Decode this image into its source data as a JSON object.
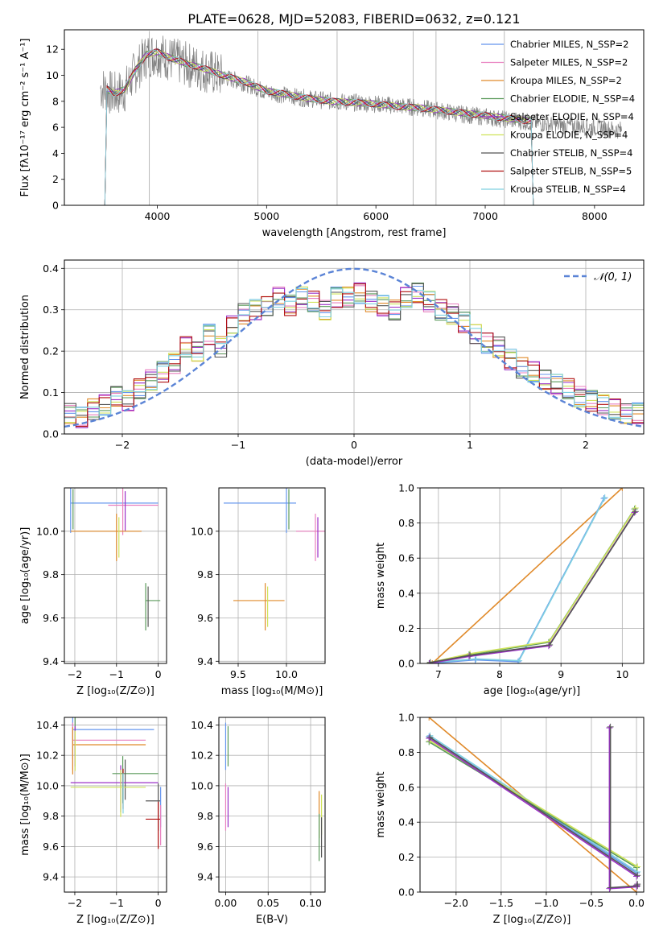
{
  "figure_title": "PLATE=0628, MJD=52083, FIBERID=0632, z=0.121",
  "colors": {
    "chabrier_miles": "#6495ed",
    "salpeter_miles": "#e87fbf",
    "kroupa_miles": "#e08a2a",
    "chabrier_elodie": "#5a9a5a",
    "salpeter_elodie": "#9b30c8",
    "kroupa_elodie": "#cfe35a",
    "chabrier_stelib": "#555555",
    "salpeter_stelib": "#b01010",
    "kroupa_stelib": "#7fd0e0",
    "data": "#7f7f7f",
    "gaussian": "#5b84d6",
    "grid": "#b0b0b0"
  },
  "chart_data": [
    {
      "type": "line",
      "xlabel": "wavelength [Angstrom, rest frame]",
      "ylabel": "Flux [fλ10⁻¹⁷ erg cm⁻² s⁻¹ A⁻¹]",
      "xlim": [
        3150,
        8450
      ],
      "ylim": [
        0,
        13.5
      ],
      "xticks": [
        "4000",
        "5000",
        "6000",
        "7000",
        "8000"
      ],
      "yticks": [
        "0",
        "2",
        "4",
        "6",
        "8",
        "10",
        "12"
      ],
      "grid": false,
      "legend_position": "top-right",
      "legend": [
        "Chabrier MILES, N_SSP=2",
        "Salpeter MILES, N_SSP=2",
        "Kroupa MILES, N_SSP=2",
        "Chabrier ELODIE, N_SSP=4",
        "Salpeter ELODIE, N_SSP=4",
        "Kroupa ELODIE, N_SSP=4",
        "Chabrier STELIB, N_SSP=4",
        "Salpeter STELIB, N_SSP=5",
        "Kroupa STELIB, N_SSP=4"
      ],
      "model_continuum": {
        "x": [
          3500,
          3600,
          3700,
          3800,
          3900,
          4000,
          4100,
          4200,
          4300,
          4400,
          4500,
          4600,
          4800,
          5000,
          5200,
          5400,
          5600,
          5800,
          6000,
          6200,
          6400,
          6600,
          6800,
          7000,
          7200,
          7400
        ],
        "y": [
          9.2,
          8.6,
          8.9,
          10.4,
          11.6,
          11.8,
          11.4,
          11.1,
          10.8,
          10.6,
          10.3,
          10.0,
          9.5,
          8.8,
          8.5,
          8.2,
          8.0,
          7.9,
          7.8,
          7.6,
          7.5,
          7.3,
          7.1,
          6.9,
          6.7,
          6.5
        ]
      },
      "data_envelope": {
        "x": [
          3500,
          3600,
          3700,
          3800,
          3900,
          4000,
          4100,
          4200,
          4400,
          4600,
          4800,
          5000,
          5300,
          5600,
          6000,
          6400,
          6800,
          7200,
          7600,
          8000,
          8200
        ],
        "y": [
          9.0,
          8.5,
          8.8,
          10.3,
          11.5,
          11.7,
          11.3,
          11.0,
          10.5,
          9.9,
          9.4,
          8.7,
          8.3,
          8.0,
          7.8,
          7.5,
          7.0,
          6.6,
          6.2,
          6.0,
          5.8
        ]
      }
    },
    {
      "type": "line",
      "xlabel": "(data-model)/error",
      "ylabel": "Normed distribution",
      "xlim": [
        -2.5,
        2.5
      ],
      "ylim": [
        0,
        0.42
      ],
      "xticks": [
        "−2",
        "−1",
        "0",
        "1",
        "2"
      ],
      "yticks": [
        "0.0",
        "0.1",
        "0.2",
        "0.3",
        "0.4"
      ],
      "grid": true,
      "legend_position": "top-right",
      "legend": [
        "𝒩(0, 1)"
      ],
      "histogram_bin_centers": [
        -2.45,
        -2.35,
        -2.25,
        -2.15,
        -2.05,
        -1.95,
        -1.85,
        -1.75,
        -1.65,
        -1.55,
        -1.45,
        -1.35,
        -1.25,
        -1.15,
        -1.05,
        -0.95,
        -0.85,
        -0.75,
        -0.65,
        -0.55,
        -0.45,
        -0.35,
        -0.25,
        -0.15,
        -0.05,
        0.05,
        0.15,
        0.25,
        0.35,
        0.45,
        0.55,
        0.65,
        0.75,
        0.85,
        0.95,
        1.05,
        1.15,
        1.25,
        1.35,
        1.45,
        1.55,
        1.65,
        1.75,
        1.85,
        1.95,
        2.05,
        2.15,
        2.25,
        2.35,
        2.45
      ],
      "histogram_values": [
        0.05,
        0.04,
        0.06,
        0.07,
        0.09,
        0.08,
        0.11,
        0.13,
        0.15,
        0.17,
        0.21,
        0.2,
        0.24,
        0.21,
        0.26,
        0.29,
        0.3,
        0.31,
        0.33,
        0.31,
        0.33,
        0.32,
        0.3,
        0.33,
        0.33,
        0.34,
        0.32,
        0.31,
        0.3,
        0.33,
        0.34,
        0.32,
        0.3,
        0.29,
        0.27,
        0.24,
        0.22,
        0.21,
        0.18,
        0.16,
        0.15,
        0.13,
        0.12,
        0.11,
        0.09,
        0.08,
        0.07,
        0.06,
        0.05,
        0.05
      ]
    },
    {
      "type": "scatter",
      "xlabel": "Z [log₁₀(Z/Z⊙)]",
      "ylabel": "age  [log₁₀(age/yr)]",
      "xlim": [
        -2.25,
        0.2
      ],
      "ylim": [
        9.39,
        10.2
      ],
      "xticks": [
        "−2",
        "−1",
        "0"
      ],
      "yticks": [
        "9.4",
        "9.6",
        "9.8",
        "10.0"
      ],
      "grid": true,
      "points": [
        {
          "x": -2.1,
          "y": 10.13,
          "xmin": -2.1,
          "xmax": 0.0
        },
        {
          "x": -0.85,
          "y": 10.12,
          "xmin": -1.2,
          "xmax": 0.0
        },
        {
          "x": -1.0,
          "y": 10.0,
          "xmin": -2.1,
          "xmax": -0.4
        },
        {
          "x": -0.3,
          "y": 9.68,
          "xmin": -0.3,
          "xmax": 0.05
        }
      ]
    },
    {
      "type": "scatter",
      "xlabel": "mass [log₁₀(M/M⊙)]",
      "ylabel": "",
      "xlim": [
        9.3,
        10.4
      ],
      "ylim": [
        9.39,
        10.2
      ],
      "xticks": [
        "9.5",
        "10.0"
      ],
      "yticks": [
        "9.4",
        "9.6",
        "9.8",
        "10.0"
      ],
      "grid": true,
      "points": [
        {
          "x": 10.0,
          "y": 10.13,
          "xmin": 9.35,
          "xmax": 10.1
        },
        {
          "x": 10.3,
          "y": 10.0,
          "xmin": 10.1,
          "xmax": 10.4
        },
        {
          "x": 9.78,
          "y": 9.68,
          "xmin": 9.45,
          "xmax": 9.98
        }
      ]
    },
    {
      "type": "line",
      "xlabel": "age  [log₁₀(age/yr)]",
      "ylabel": "mass weight",
      "xlim": [
        6.7,
        10.35
      ],
      "ylim": [
        0,
        1.0
      ],
      "xticks": [
        "7",
        "8",
        "9",
        "10"
      ],
      "yticks": [
        "0.0",
        "0.2",
        "0.4",
        "0.6",
        "0.8",
        "1.0"
      ],
      "grid": true,
      "series": [
        {
          "x": [
            6.9,
            10.0
          ],
          "y": [
            0.0,
            1.0
          ]
        },
        {
          "x": [
            6.85,
            7.6,
            8.3,
            9.7
          ],
          "y": [
            0.0,
            0.02,
            0.01,
            0.94
          ]
        },
        {
          "x": [
            6.85,
            7.5,
            8.8,
            10.2
          ],
          "y": [
            0.0,
            0.05,
            0.12,
            0.88
          ]
        },
        {
          "x": [
            6.85,
            7.5,
            8.8,
            10.2
          ],
          "y": [
            0.0,
            0.04,
            0.1,
            0.86
          ]
        }
      ]
    },
    {
      "type": "scatter",
      "xlabel": "Z [log₁₀(Z/Z⊙)]",
      "ylabel": "mass [log₁₀(M/M⊙)]",
      "xlim": [
        -2.25,
        0.2
      ],
      "ylim": [
        9.3,
        10.45
      ],
      "xticks": [
        "−2",
        "−1",
        "0"
      ],
      "yticks": [
        "9.4",
        "9.6",
        "9.8",
        "10.0",
        "10.2",
        "10.4"
      ],
      "grid": true,
      "points": [
        {
          "x": -2.05,
          "y": 10.37,
          "xmin": -2.05,
          "xmax": -0.1
        },
        {
          "x": -2.05,
          "y": 10.3,
          "xmin": -2.05,
          "xmax": -0.3
        },
        {
          "x": -2.05,
          "y": 10.27,
          "xmin": -2.05,
          "xmax": -0.3
        },
        {
          "x": -0.85,
          "y": 10.08,
          "xmin": -1.1,
          "xmax": 0.0
        },
        {
          "x": -0.9,
          "y": 10.02,
          "xmin": -2.1,
          "xmax": 0.0
        },
        {
          "x": -0.9,
          "y": 9.99,
          "xmin": -2.1,
          "xmax": -0.3
        },
        {
          "x": 0.0,
          "y": 9.9,
          "xmin": -0.3,
          "xmax": 0.05
        },
        {
          "x": 0.0,
          "y": 9.78,
          "xmin": -0.3,
          "xmax": 0.05
        }
      ]
    },
    {
      "type": "scatter",
      "xlabel": "E(B-V)",
      "ylabel": "",
      "xlim": [
        -0.008,
        0.117
      ],
      "ylim": [
        9.3,
        10.45
      ],
      "xticks": [
        "0.00",
        "0.05",
        "0.10"
      ],
      "yticks": [
        "9.4",
        "9.6",
        "9.8",
        "10.0",
        "10.2",
        "10.4"
      ],
      "grid": true,
      "points": [
        {
          "x": 0.0,
          "y": 10.3
        },
        {
          "x": 0.0,
          "y": 9.9
        },
        {
          "x": 0.11,
          "y": 9.85
        },
        {
          "x": 0.11,
          "y": 9.7
        }
      ]
    },
    {
      "type": "line",
      "xlabel": "Z [log₁₀(Z/Z⊙)]",
      "ylabel": "mass weight",
      "xlim": [
        -2.4,
        0.08
      ],
      "ylim": [
        0,
        1.0
      ],
      "xticks": [
        "−2.0",
        "−1.5",
        "−1.0",
        "−0.5",
        "0.0"
      ],
      "yticks": [
        "0.0",
        "0.2",
        "0.4",
        "0.6",
        "0.8",
        "1.0"
      ],
      "grid": true,
      "series": [
        {
          "x": [
            -2.3,
            0.0
          ],
          "y": [
            1.0,
            0.0
          ]
        },
        {
          "x": [
            -2.3,
            0.0
          ],
          "y": [
            0.89,
            0.11
          ]
        },
        {
          "x": [
            -2.3,
            0.0
          ],
          "y": [
            0.86,
            0.14
          ]
        },
        {
          "x": [
            -2.3,
            0.0
          ],
          "y": [
            0.88,
            0.09
          ]
        },
        {
          "x": [
            -0.3,
            -0.3,
            0.0,
            0.0
          ],
          "y": [
            0.94,
            0.02,
            0.03,
            0.04
          ]
        }
      ]
    }
  ]
}
